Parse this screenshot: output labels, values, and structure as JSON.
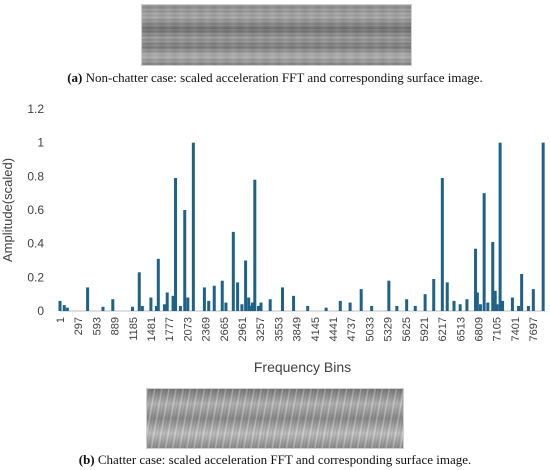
{
  "figure": {
    "top_caption": {
      "label": "(a)",
      "text": " Non-chatter case: scaled acceleration FFT and corresponding surface image."
    },
    "bottom_caption": {
      "label": "(b)",
      "text": " Chatter case: scaled acceleration FFT and corresponding surface image."
    }
  },
  "colors": {
    "bar": "#1f6287",
    "axis": "#bfbfbf",
    "text": "#404040"
  },
  "chart_data": {
    "type": "bar",
    "xlabel": "Frequency Bins",
    "ylabel": "Amplitude(scaled)",
    "ylim": [
      0,
      1.2
    ],
    "yticks": [
      0,
      0.2,
      0.4,
      0.6,
      0.8,
      1,
      1.2
    ],
    "ytick_labels": [
      "0",
      "0.2",
      "0.4",
      "0.6",
      "0.8",
      "1",
      "1.2"
    ],
    "xlim": [
      1,
      7890
    ],
    "xticks": [
      1,
      297,
      593,
      889,
      1185,
      1481,
      1777,
      2073,
      2369,
      2665,
      2961,
      3257,
      3553,
      3849,
      4145,
      4441,
      4737,
      5033,
      5329,
      5625,
      5921,
      6217,
      6513,
      6809,
      7105,
      7401,
      7697
    ],
    "grid": false,
    "legend": "none",
    "bins": [
      1,
      70,
      120,
      450,
      700,
      860,
      1180,
      1290,
      1340,
      1480,
      1570,
      1600,
      1700,
      1745,
      1840,
      1880,
      1960,
      2030,
      2080,
      2170,
      2350,
      2420,
      2510,
      2640,
      2700,
      2820,
      2890,
      2960,
      3020,
      3070,
      3090,
      3130,
      3170,
      3230,
      3270,
      3420,
      3620,
      3800,
      4030,
      4330,
      4560,
      4720,
      4900,
      5070,
      5350,
      5480,
      5640,
      5780,
      5940,
      6080,
      6220,
      6300,
      6410,
      6510,
      6620,
      6760,
      6790,
      6840,
      6900,
      6960,
      7040,
      7080,
      7110,
      7160,
      7200,
      7360,
      7460,
      7510,
      7620,
      7700,
      7860
    ],
    "values": [
      0.06,
      0.035,
      0.02,
      0.14,
      0.025,
      0.07,
      0.025,
      0.23,
      0.03,
      0.08,
      0.03,
      0.31,
      0.04,
      0.11,
      0.09,
      0.79,
      0.03,
      0.6,
      0.08,
      1.0,
      0.14,
      0.06,
      0.15,
      0.18,
      0.05,
      0.47,
      0.17,
      0.04,
      0.3,
      0.08,
      0.03,
      0.05,
      0.78,
      0.03,
      0.05,
      0.07,
      0.14,
      0.09,
      0.03,
      0.02,
      0.06,
      0.05,
      0.13,
      0.03,
      0.18,
      0.03,
      0.07,
      0.03,
      0.1,
      0.19,
      0.79,
      0.17,
      0.06,
      0.04,
      0.07,
      0.37,
      0.11,
      0.04,
      0.7,
      0.05,
      0.41,
      0.12,
      0.04,
      1.0,
      0.06,
      0.08,
      0.03,
      0.22,
      0.03,
      0.13,
      1.0
    ]
  }
}
